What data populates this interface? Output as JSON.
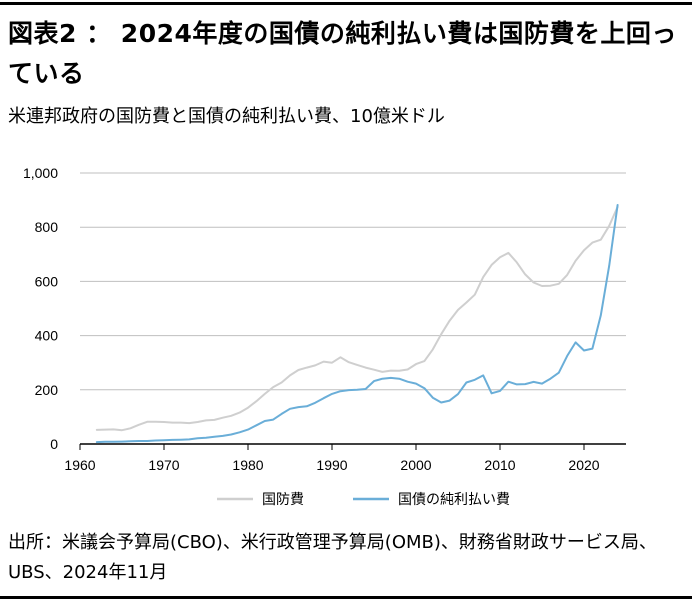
{
  "header": {
    "title": "図表2 ： 2024年度の国債の純利払い費は国防費を上回っている",
    "subtitle": "米連邦政府の国防費と国債の純利払い費、10億米ドル"
  },
  "footer": {
    "source": "出所：米議会予算局(CBO)、米行政管理予算局(OMB)、財務省財政サービス局、UBS、2024年11月"
  },
  "colors": {
    "defense": "#cfcfcf",
    "interest": "#6aaed8",
    "axis": "#000000",
    "grid": "#bfbfbf"
  },
  "chart_data": {
    "type": "line",
    "title": "",
    "xlabel": "",
    "ylabel": "",
    "xlim": [
      1960,
      2025
    ],
    "ylim": [
      0,
      1000
    ],
    "grid": true,
    "legend_position": "bottom",
    "x_ticks": [
      1960,
      1970,
      1980,
      1990,
      2000,
      2010,
      2020
    ],
    "y_ticks": [
      0,
      200,
      400,
      600,
      800,
      1000
    ],
    "y_tick_labels": [
      "0",
      "200",
      "400",
      "600",
      "800",
      "1,000"
    ],
    "x": [
      1962,
      1963,
      1964,
      1965,
      1966,
      1967,
      1968,
      1969,
      1970,
      1971,
      1972,
      1973,
      1974,
      1975,
      1976,
      1977,
      1978,
      1979,
      1980,
      1981,
      1982,
      1983,
      1984,
      1985,
      1986,
      1987,
      1988,
      1989,
      1990,
      1991,
      1992,
      1993,
      1994,
      1995,
      1996,
      1997,
      1998,
      1999,
      2000,
      2001,
      2002,
      2003,
      2004,
      2005,
      2006,
      2007,
      2008,
      2009,
      2010,
      2011,
      2012,
      2013,
      2014,
      2015,
      2016,
      2017,
      2018,
      2019,
      2020,
      2021,
      2022,
      2023,
      2024
    ],
    "series": [
      {
        "name": "国防費",
        "values": [
          52,
          53,
          54,
          51,
          58,
          71,
          82,
          82,
          81,
          79,
          79,
          77,
          81,
          87,
          89,
          97,
          104,
          116,
          134,
          158,
          185,
          210,
          227,
          253,
          273,
          282,
          290,
          304,
          300,
          320,
          302,
          292,
          282,
          274,
          266,
          271,
          270,
          275,
          295,
          306,
          349,
          405,
          455,
          495,
          522,
          551,
          616,
          661,
          689,
          705,
          670,
          626,
          596,
          583,
          584,
          591,
          624,
          676,
          715,
          743,
          754,
          805,
          875
        ],
        "color": "#cfcfcf"
      },
      {
        "name": "国債の純利払い費",
        "values": [
          7,
          8,
          8,
          9,
          10,
          11,
          11,
          13,
          14,
          15,
          16,
          17,
          21,
          23,
          27,
          30,
          35,
          43,
          53,
          69,
          85,
          90,
          111,
          130,
          136,
          139,
          152,
          169,
          185,
          195,
          199,
          200,
          203,
          232,
          241,
          244,
          241,
          230,
          223,
          206,
          171,
          153,
          160,
          184,
          227,
          237,
          253,
          187,
          196,
          230,
          220,
          221,
          229,
          223,
          241,
          263,
          325,
          375,
          345,
          352,
          475,
          658,
          882
        ],
        "color": "#6aaed8"
      }
    ]
  }
}
